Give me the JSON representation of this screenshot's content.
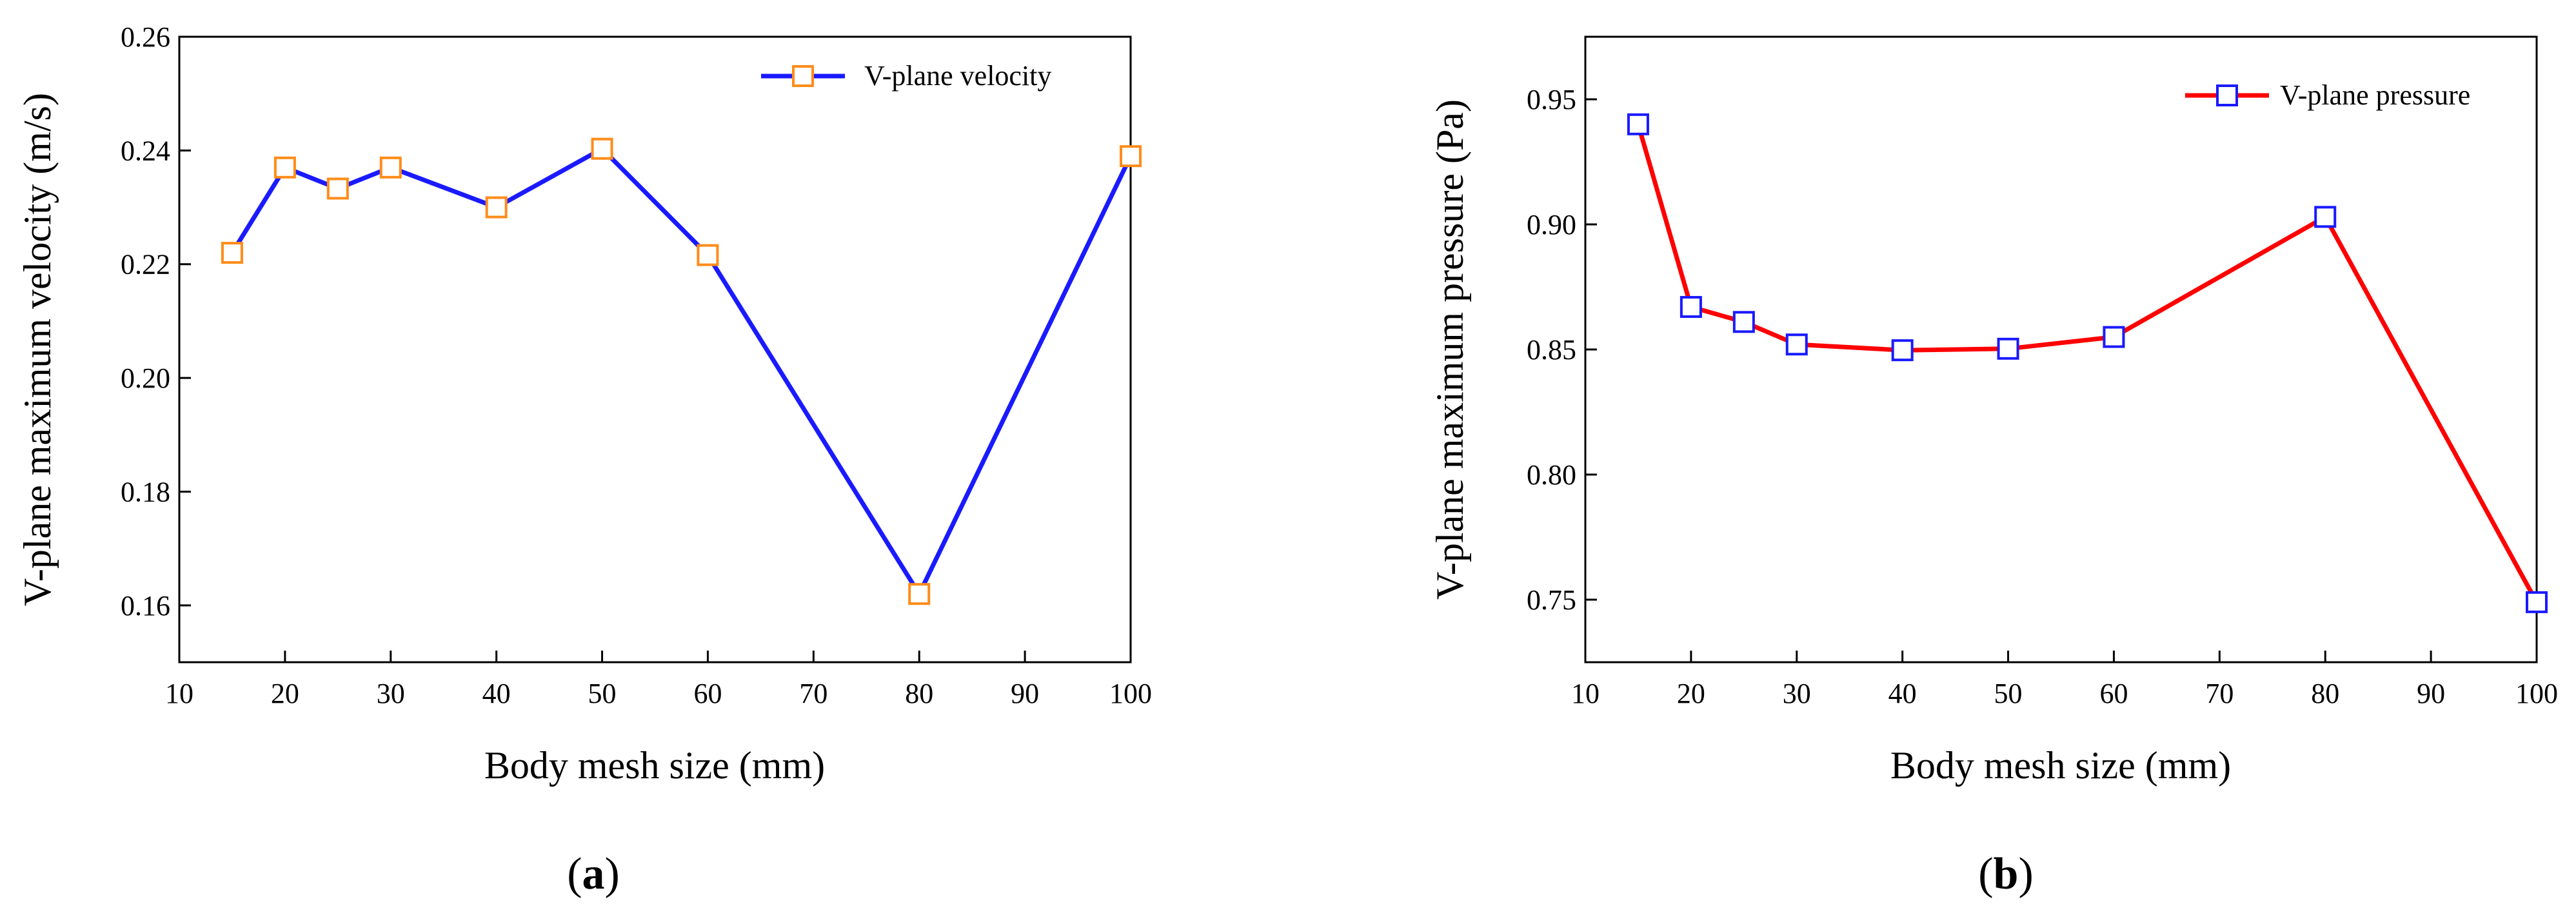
{
  "chart_data": [
    {
      "type": "line",
      "panel": "a",
      "title": "",
      "xlabel": "Body mesh size (mm)",
      "ylabel": "V-plane maximum velocity (m/s)",
      "xlim": [
        10,
        100
      ],
      "ylim": [
        0.15,
        0.26
      ],
      "xticks": [
        10,
        20,
        30,
        40,
        50,
        60,
        70,
        80,
        90,
        100
      ],
      "yticks": [
        0.16,
        0.18,
        0.2,
        0.22,
        0.24,
        0.26
      ],
      "ytick_labels": [
        "0.16",
        "0.18",
        "0.20",
        "0.22",
        "0.24",
        "0.26"
      ],
      "grid": false,
      "legend_position": "top-right",
      "series": [
        {
          "name": "V-plane velocity",
          "line_color": "#1a1aff",
          "marker_color": "#ff8c1a",
          "marker": "square",
          "x": [
            15,
            20,
            25,
            30,
            40,
            50,
            60,
            80,
            100
          ],
          "values": [
            0.222,
            0.237,
            0.2333,
            0.237,
            0.23,
            0.2403,
            0.2216,
            0.162,
            0.239
          ]
        }
      ]
    },
    {
      "type": "line",
      "panel": "b",
      "title": "",
      "xlabel": "Body mesh size (mm)",
      "ylabel": "V-plane maximum pressure (Pa)",
      "xlim": [
        10,
        100
      ],
      "ylim": [
        0.725,
        0.975
      ],
      "xticks": [
        10,
        20,
        30,
        40,
        50,
        60,
        70,
        80,
        90,
        100
      ],
      "yticks": [
        0.75,
        0.8,
        0.85,
        0.9,
        0.95
      ],
      "ytick_labels": [
        "0.75",
        "0.80",
        "0.85",
        "0.90",
        "0.95"
      ],
      "grid": false,
      "legend_position": "top-right",
      "series": [
        {
          "name": "V-plane pressure",
          "line_color": "#ff0000",
          "marker_color": "#1a1aff",
          "marker": "square",
          "x": [
            15,
            20,
            25,
            30,
            40,
            50,
            60,
            80,
            100
          ],
          "values": [
            0.94,
            0.867,
            0.861,
            0.852,
            0.8497,
            0.8503,
            0.855,
            0.903,
            0.749
          ]
        }
      ]
    }
  ],
  "captions": [
    {
      "open": "(",
      "letter": "a",
      "close": ")"
    },
    {
      "open": "(",
      "letter": "b",
      "close": ")"
    }
  ]
}
